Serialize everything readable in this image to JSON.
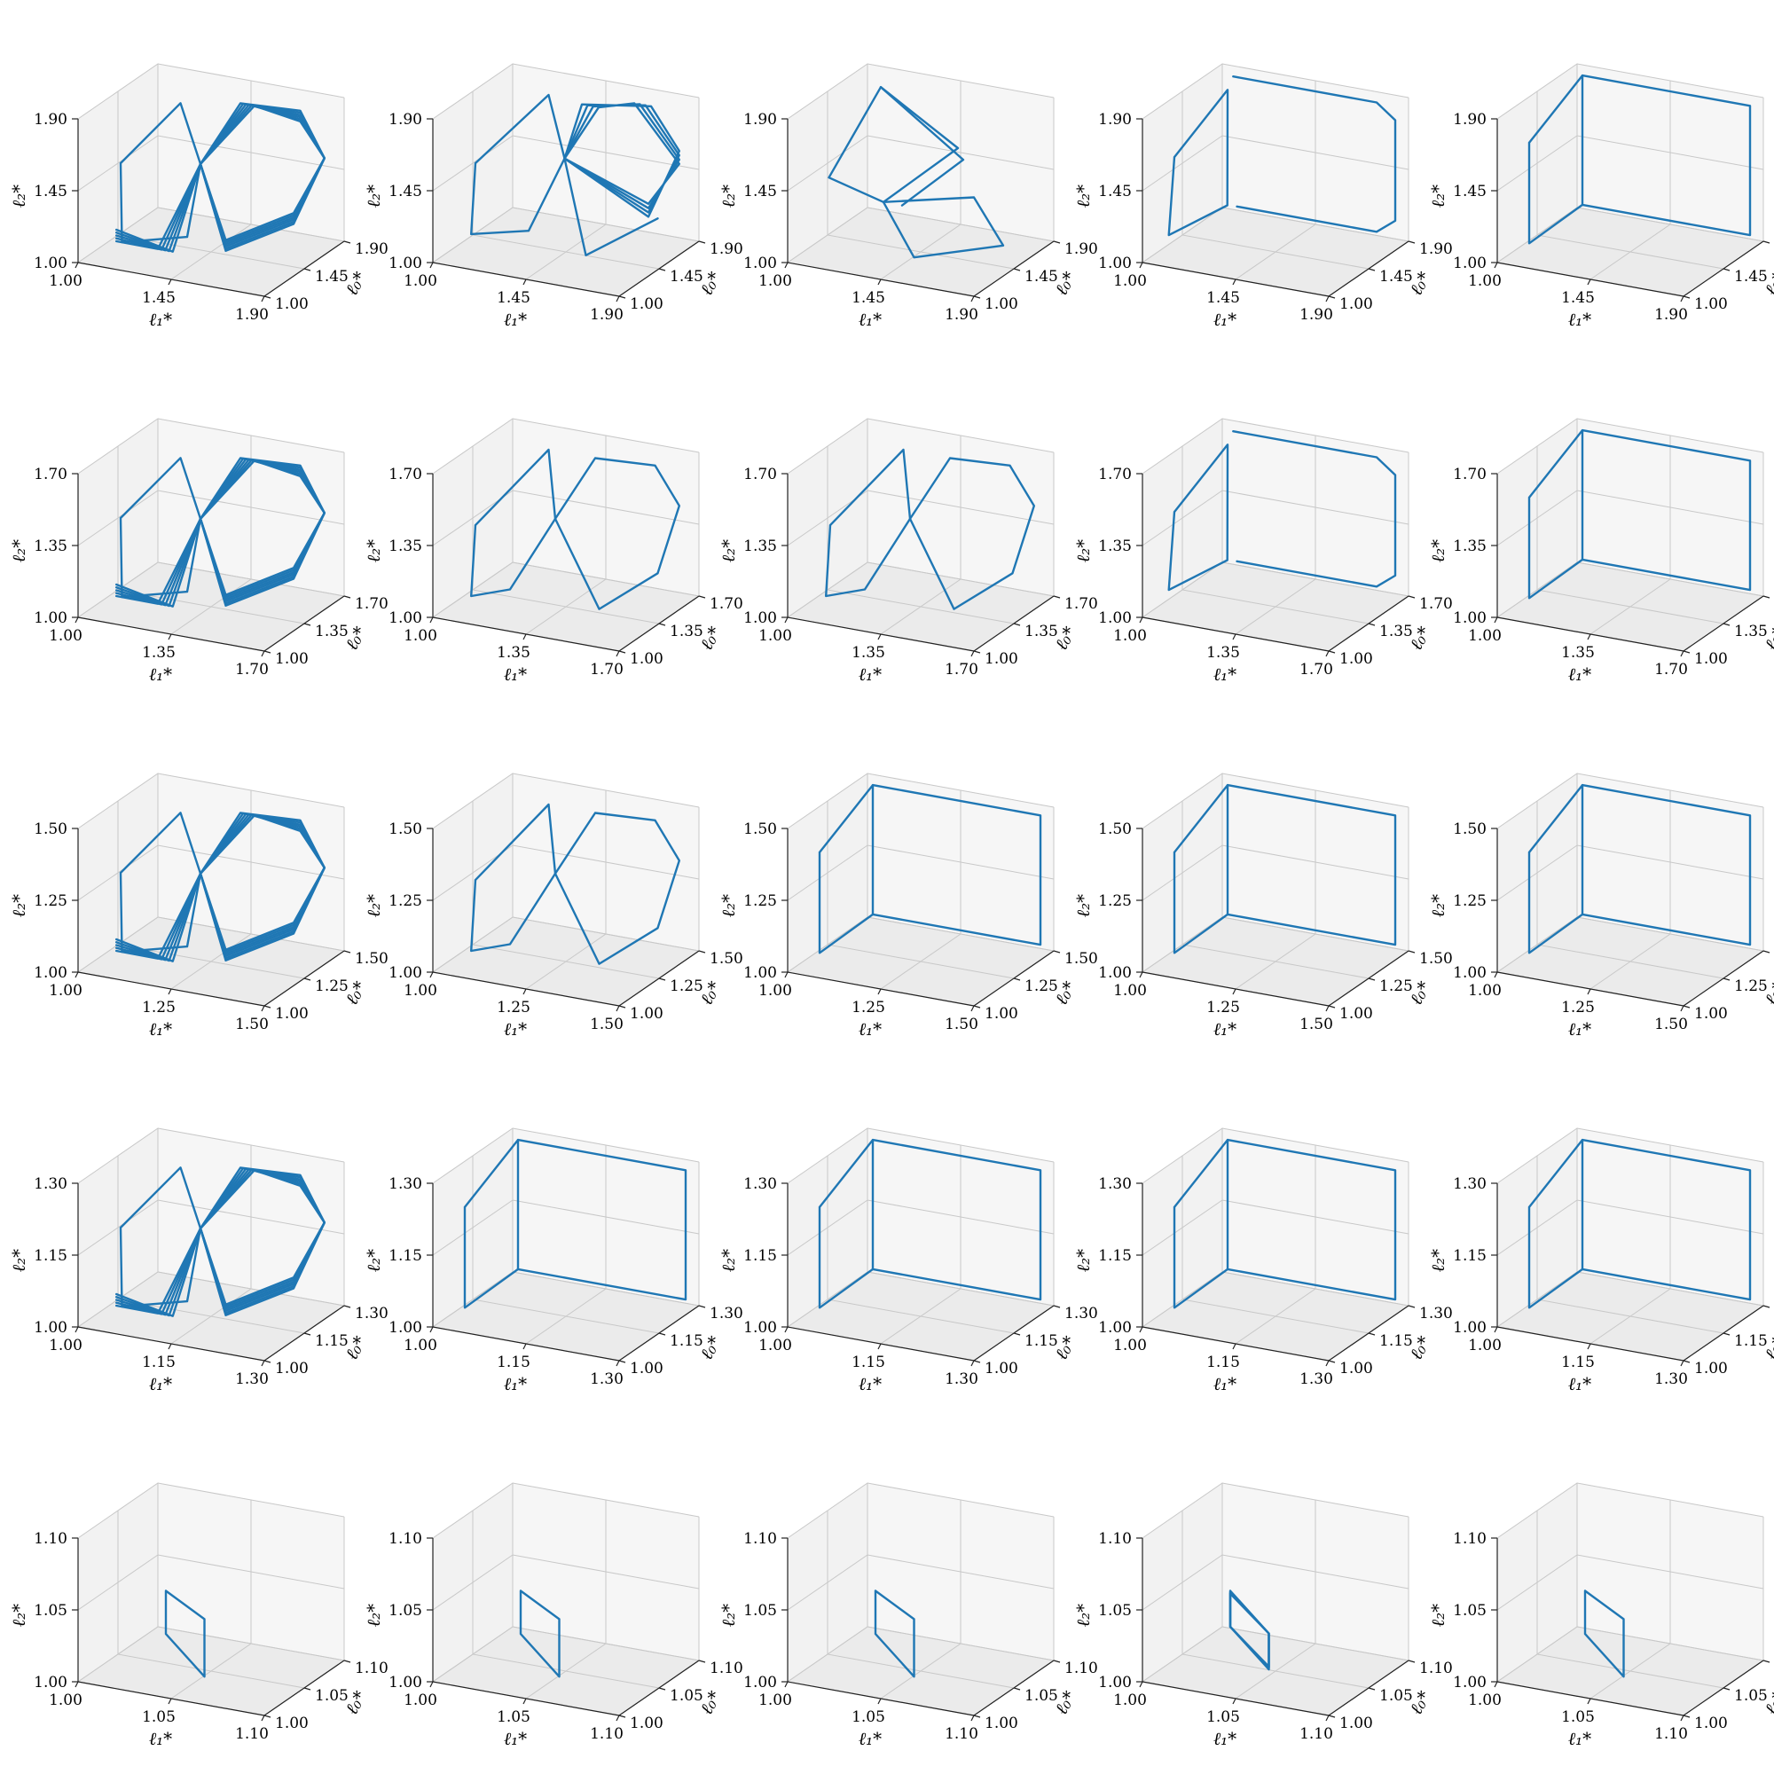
{
  "figure": {
    "rows": 5,
    "cols": 5
  },
  "axis_labels": {
    "x": "ℓ₁*",
    "y": "ℓ₀*",
    "z": "ℓ₂*"
  },
  "chart_data": [
    {
      "row": 0,
      "col": 0,
      "type": "line",
      "ticks": [
        1.0,
        1.45,
        1.9
      ],
      "tick_labels": [
        "1.00",
        "1.45",
        "1.90"
      ],
      "pattern": "messy-limit-cycle",
      "grid": true
    },
    {
      "row": 0,
      "col": 1,
      "type": "line",
      "ticks": [
        1.0,
        1.45,
        1.9
      ],
      "tick_labels": [
        "1.00",
        "1.45",
        "1.90"
      ],
      "pattern": "bundled-cycle",
      "grid": true
    },
    {
      "row": 0,
      "col": 2,
      "type": "line",
      "ticks": [
        1.0,
        1.45,
        1.9
      ],
      "tick_labels": [
        "1.00",
        "1.45",
        "1.90"
      ],
      "pattern": "twisted-cycle",
      "grid": true
    },
    {
      "row": 0,
      "col": 3,
      "type": "line",
      "ticks": [
        1.0,
        1.45,
        1.9
      ],
      "tick_labels": [
        "1.00",
        "1.45",
        "1.90"
      ],
      "pattern": "rounded-box",
      "grid": true
    },
    {
      "row": 0,
      "col": 4,
      "type": "line",
      "ticks": [
        1.0,
        1.45,
        1.9
      ],
      "tick_labels": [
        "1.00",
        "1.45",
        "1.90"
      ],
      "pattern": "box",
      "grid": true
    },
    {
      "row": 1,
      "col": 0,
      "type": "line",
      "ticks": [
        1.0,
        1.35,
        1.7
      ],
      "tick_labels": [
        "1.00",
        "1.35",
        "1.70"
      ],
      "pattern": "messy-limit-cycle",
      "grid": true
    },
    {
      "row": 1,
      "col": 1,
      "type": "line",
      "ticks": [
        1.0,
        1.35,
        1.7
      ],
      "tick_labels": [
        "1.00",
        "1.35",
        "1.70"
      ],
      "pattern": "octagon-cycle",
      "grid": true
    },
    {
      "row": 1,
      "col": 2,
      "type": "line",
      "ticks": [
        1.0,
        1.35,
        1.7
      ],
      "tick_labels": [
        "1.00",
        "1.35",
        "1.70"
      ],
      "pattern": "octagon-cycle",
      "grid": true
    },
    {
      "row": 1,
      "col": 3,
      "type": "line",
      "ticks": [
        1.0,
        1.35,
        1.7
      ],
      "tick_labels": [
        "1.00",
        "1.35",
        "1.70"
      ],
      "pattern": "rounded-box",
      "grid": true
    },
    {
      "row": 1,
      "col": 4,
      "type": "line",
      "ticks": [
        1.0,
        1.35,
        1.7
      ],
      "tick_labels": [
        "1.00",
        "1.35",
        "1.70"
      ],
      "pattern": "box",
      "grid": true
    },
    {
      "row": 2,
      "col": 0,
      "type": "line",
      "ticks": [
        1.0,
        1.25,
        1.5
      ],
      "tick_labels": [
        "1.00",
        "1.25",
        "1.50"
      ],
      "pattern": "messy-limit-cycle",
      "grid": true
    },
    {
      "row": 2,
      "col": 1,
      "type": "line",
      "ticks": [
        1.0,
        1.25,
        1.5
      ],
      "tick_labels": [
        "1.00",
        "1.25",
        "1.50"
      ],
      "pattern": "octagon-cycle",
      "grid": true
    },
    {
      "row": 2,
      "col": 2,
      "type": "line",
      "ticks": [
        1.0,
        1.25,
        1.5
      ],
      "tick_labels": [
        "1.00",
        "1.25",
        "1.50"
      ],
      "pattern": "box",
      "grid": true
    },
    {
      "row": 2,
      "col": 3,
      "type": "line",
      "ticks": [
        1.0,
        1.25,
        1.5
      ],
      "tick_labels": [
        "1.00",
        "1.25",
        "1.50"
      ],
      "pattern": "box",
      "grid": true
    },
    {
      "row": 2,
      "col": 4,
      "type": "line",
      "ticks": [
        1.0,
        1.25,
        1.5
      ],
      "tick_labels": [
        "1.00",
        "1.25",
        "1.50"
      ],
      "pattern": "box",
      "grid": true
    },
    {
      "row": 3,
      "col": 0,
      "type": "line",
      "ticks": [
        1.0,
        1.15,
        1.3
      ],
      "tick_labels": [
        "1.00",
        "1.15",
        "1.30"
      ],
      "pattern": "messy-limit-cycle",
      "grid": true
    },
    {
      "row": 3,
      "col": 1,
      "type": "line",
      "ticks": [
        1.0,
        1.15,
        1.3
      ],
      "tick_labels": [
        "1.00",
        "1.15",
        "1.30"
      ],
      "pattern": "box",
      "grid": true
    },
    {
      "row": 3,
      "col": 2,
      "type": "line",
      "ticks": [
        1.0,
        1.15,
        1.3
      ],
      "tick_labels": [
        "1.00",
        "1.15",
        "1.30"
      ],
      "pattern": "box",
      "grid": true
    },
    {
      "row": 3,
      "col": 3,
      "type": "line",
      "ticks": [
        1.0,
        1.15,
        1.3
      ],
      "tick_labels": [
        "1.00",
        "1.15",
        "1.30"
      ],
      "pattern": "box",
      "grid": true
    },
    {
      "row": 3,
      "col": 4,
      "type": "line",
      "ticks": [
        1.0,
        1.15,
        1.3
      ],
      "tick_labels": [
        "1.00",
        "1.15",
        "1.30"
      ],
      "pattern": "box",
      "grid": true
    },
    {
      "row": 4,
      "col": 0,
      "type": "line",
      "ticks": [
        1.0,
        1.05,
        1.1
      ],
      "tick_labels": [
        "1.00",
        "1.05",
        "1.10"
      ],
      "pattern": "small-loop",
      "grid": true
    },
    {
      "row": 4,
      "col": 1,
      "type": "line",
      "ticks": [
        1.0,
        1.05,
        1.1
      ],
      "tick_labels": [
        "1.00",
        "1.05",
        "1.10"
      ],
      "pattern": "small-loop",
      "grid": true
    },
    {
      "row": 4,
      "col": 2,
      "type": "line",
      "ticks": [
        1.0,
        1.05,
        1.1
      ],
      "tick_labels": [
        "1.00",
        "1.05",
        "1.10"
      ],
      "pattern": "small-loop",
      "grid": true
    },
    {
      "row": 4,
      "col": 3,
      "type": "line",
      "ticks": [
        1.0,
        1.05,
        1.1
      ],
      "tick_labels": [
        "1.00",
        "1.05",
        "1.10"
      ],
      "pattern": "small-loop-thick",
      "grid": true
    },
    {
      "row": 4,
      "col": 4,
      "type": "line",
      "ticks": [
        1.0,
        1.05,
        1.1
      ],
      "tick_labels": [
        "1.00",
        "1.05",
        "1.10"
      ],
      "pattern": "small-loop",
      "grid": true
    }
  ]
}
